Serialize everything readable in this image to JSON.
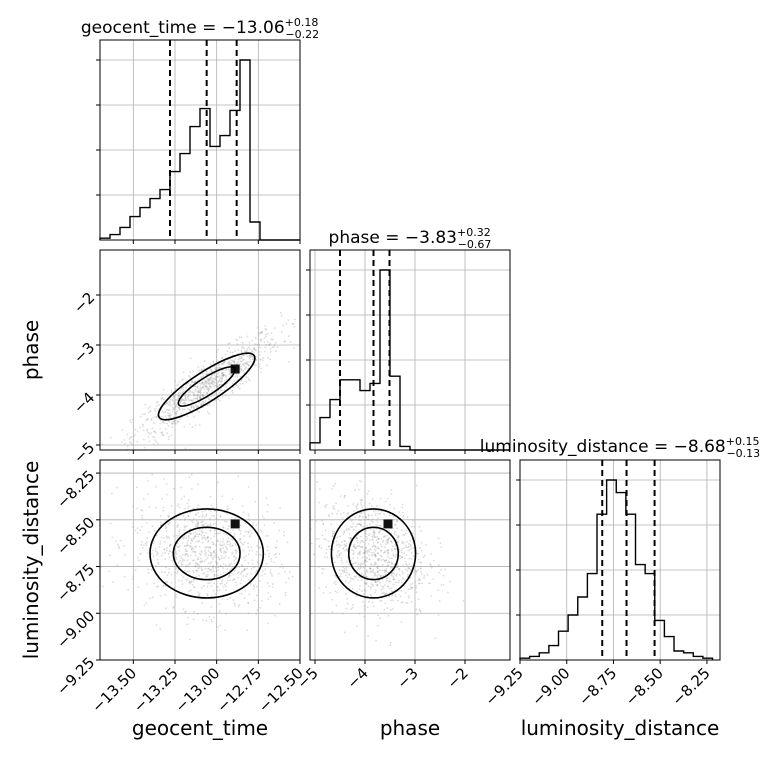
{
  "chart_data": {
    "type": "corner",
    "parameters": [
      "geocent_time",
      "phase",
      "luminosity_distance"
    ],
    "axis_labels": [
      "geocent_time",
      "phase",
      "luminosity_distance"
    ],
    "titles": [
      {
        "param": "geocent_time",
        "prefix": "geocent_time = ",
        "median": "−13.06",
        "upper": "+0.18",
        "lower": "−0.22"
      },
      {
        "param": "phase",
        "prefix": "phase = ",
        "median": "−3.83",
        "upper": "+0.32",
        "lower": "−0.67"
      },
      {
        "param": "luminosity_distance",
        "prefix": "luminosity_distance = ",
        "median": "−8.68",
        "upper": "+0.15",
        "lower": "−0.13"
      }
    ],
    "ranges": {
      "geocent_time": [
        -13.7,
        -12.5
      ],
      "phase": [
        -5.1,
        -1.1
      ],
      "luminosity_distance": [
        -9.25,
        -8.18
      ]
    },
    "ticks": {
      "geocent_time": {
        "values": [
          -13.5,
          -13.25,
          -13.0,
          -12.75,
          -12.5
        ],
        "labels": [
          "−13.50",
          "−13.25",
          "−13.00",
          "−12.75",
          "−12.50"
        ]
      },
      "phase": {
        "values": [
          -5,
          -4,
          -3,
          -2
        ],
        "labels": [
          "−5",
          "−4",
          "−3",
          "−2"
        ]
      },
      "luminosity_distance": {
        "values": [
          -9.25,
          -9.0,
          -8.75,
          -8.5,
          -8.25
        ],
        "labels": [
          "−9.25",
          "−9.00",
          "−8.75",
          "−8.50",
          "−8.25"
        ]
      }
    },
    "quantiles": {
      "geocent_time": [
        -13.28,
        -13.06,
        -12.88
      ],
      "phase": [
        -4.5,
        -3.83,
        -3.51
      ],
      "luminosity_distance": [
        -8.81,
        -8.68,
        -8.53
      ]
    },
    "histograms": {
      "geocent_time": {
        "edges": [
          -13.7,
          -13.64,
          -13.58,
          -13.52,
          -13.46,
          -13.4,
          -13.34,
          -13.28,
          -13.22,
          -13.16,
          -13.1,
          -13.04,
          -12.98,
          -12.92,
          -12.86,
          -12.8,
          -12.74,
          -12.68,
          -12.62,
          -12.56,
          -12.5
        ],
        "counts": [
          0.01,
          0.03,
          0.07,
          0.13,
          0.18,
          0.23,
          0.28,
          0.38,
          0.48,
          0.63,
          0.73,
          0.52,
          0.58,
          0.72,
          1.0,
          0.1,
          0.0,
          0.0,
          0.0,
          0.0
        ]
      },
      "phase": {
        "edges": [
          -5.1,
          -4.9,
          -4.7,
          -4.5,
          -4.3,
          -4.1,
          -3.9,
          -3.7,
          -3.5,
          -3.3,
          -3.1,
          -2.9,
          -2.7,
          -2.5,
          -2.3,
          -2.1,
          -1.9,
          -1.7,
          -1.5,
          -1.3,
          -1.1
        ],
        "counts": [
          0.04,
          0.18,
          0.28,
          0.39,
          0.39,
          0.33,
          0.37,
          1.0,
          0.41,
          0.02,
          0.0,
          0.0,
          0.0,
          0.0,
          0.0,
          0.0,
          0.0,
          0.0,
          0.0,
          0.0
        ]
      },
      "luminosity_distance": {
        "edges": [
          -9.25,
          -9.1985,
          -9.147,
          -9.0955,
          -9.044,
          -8.9925,
          -8.941,
          -8.8895,
          -8.838,
          -8.7865,
          -8.735,
          -8.6835,
          -8.632,
          -8.5805,
          -8.529,
          -8.4775,
          -8.426,
          -8.3745,
          -8.323,
          -8.2715,
          -8.22
        ],
        "counts": [
          0.01,
          0.02,
          0.04,
          0.08,
          0.16,
          0.25,
          0.35,
          0.48,
          0.81,
          1.0,
          0.93,
          0.81,
          0.53,
          0.48,
          0.22,
          0.13,
          0.05,
          0.04,
          0.02,
          0.01
        ]
      }
    },
    "contour_style": "two-level density contours with grayscale 2D histogram and scatter of outliers",
    "grid": true,
    "colors": {
      "line": "#000000",
      "grid": "#b0b0b0",
      "scatter": "#9a9a9a"
    }
  }
}
